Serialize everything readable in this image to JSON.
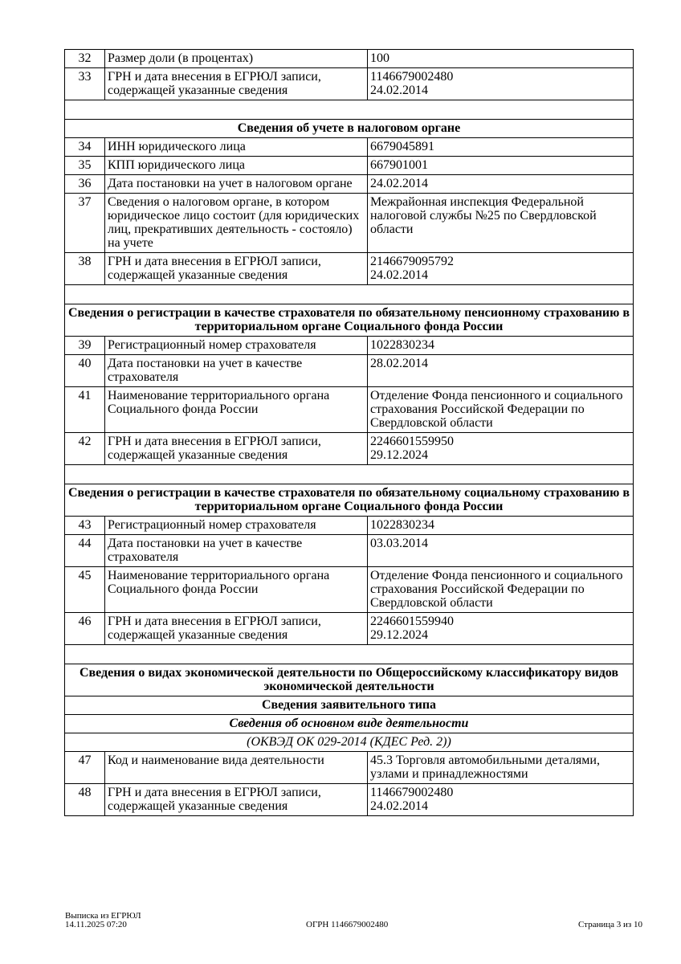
{
  "rows": [
    {
      "type": "data",
      "num": "32",
      "label": "Размер доли (в процентах)",
      "value": "100"
    },
    {
      "type": "data",
      "num": "33",
      "label": "ГРН и дата внесения в ЕГРЮЛ записи, содержащей указанные сведения",
      "value": "1146679002480\n24.02.2014"
    },
    {
      "type": "empty"
    },
    {
      "type": "head",
      "text": "Сведения об учете в налоговом органе"
    },
    {
      "type": "data",
      "num": "34",
      "label": "ИНН юридического лица",
      "value": "6679045891"
    },
    {
      "type": "data",
      "num": "35",
      "label": "КПП юридического лица",
      "value": "667901001"
    },
    {
      "type": "data",
      "num": "36",
      "label": "Дата постановки на учет в налоговом органе",
      "value": "24.02.2014"
    },
    {
      "type": "data",
      "num": "37",
      "label": "Сведения о налоговом органе, в котором юридическое лицо состоит (для юридических лиц, прекративших деятельность - состояло) на учете",
      "value": "Межрайонная инспекция Федеральной налоговой службы №25 по Свердловской области"
    },
    {
      "type": "data",
      "num": "38",
      "label": "ГРН и дата внесения в ЕГРЮЛ записи, содержащей указанные сведения",
      "value": "2146679095792\n24.02.2014"
    },
    {
      "type": "empty"
    },
    {
      "type": "head",
      "text": "Сведения о регистрации в качестве страхователя по обязательному пенсионному страхованию в территориальном органе Социального фонда России"
    },
    {
      "type": "data",
      "num": "39",
      "label": "Регистрационный номер страхователя",
      "value": "1022830234"
    },
    {
      "type": "data",
      "num": "40",
      "label": "Дата постановки на учет в качестве страхователя",
      "value": "28.02.2014"
    },
    {
      "type": "data",
      "num": "41",
      "label": "Наименование территориального органа Социального фонда России",
      "value": "Отделение Фонда пенсионного и социального страхования Российской Федерации по Свердловской области"
    },
    {
      "type": "data",
      "num": "42",
      "label": "ГРН и дата внесения в ЕГРЮЛ записи, содержащей указанные сведения",
      "value": "2246601559950\n29.12.2024"
    },
    {
      "type": "empty"
    },
    {
      "type": "head",
      "text": "Сведения о регистрации в качестве страхователя по обязательному социальному страхованию в территориальном органе Социального фонда России"
    },
    {
      "type": "data",
      "num": "43",
      "label": "Регистрационный номер страхователя",
      "value": "1022830234"
    },
    {
      "type": "data",
      "num": "44",
      "label": "Дата постановки на учет в качестве страхователя",
      "value": "03.03.2014"
    },
    {
      "type": "data",
      "num": "45",
      "label": "Наименование территориального органа Социального фонда России",
      "value": "Отделение Фонда пенсионного и социального страхования Российской Федерации по Свердловской области"
    },
    {
      "type": "data",
      "num": "46",
      "label": "ГРН и дата внесения в ЕГРЮЛ записи, содержащей указанные сведения",
      "value": "2246601559940\n29.12.2024"
    },
    {
      "type": "empty"
    },
    {
      "type": "head",
      "text": "Сведения о видах экономической деятельности по Общероссийскому классификатору видов экономической деятельности"
    },
    {
      "type": "head",
      "text": "Сведения заявительного типа"
    },
    {
      "type": "headi",
      "text": "Сведения об основном виде деятельности"
    },
    {
      "type": "ital",
      "text": "(ОКВЭД ОК 029-2014 (КДЕС Ред. 2))"
    },
    {
      "type": "data",
      "num": "47",
      "label": "Код и наименование вида деятельности",
      "value": "45.3 Торговля автомобильными деталями, узлами и принадлежностями"
    },
    {
      "type": "data",
      "num": "48",
      "label": "ГРН и дата внесения в ЕГРЮЛ записи, содержащей указанные сведения",
      "value": "1146679002480\n24.02.2014"
    }
  ],
  "footer": {
    "doc_title": "Выписка из ЕГРЮЛ",
    "datetime": "14.11.2025 07:20",
    "ogrn": "ОГРН 1146679002480",
    "page": "Страница 3 из 10"
  }
}
